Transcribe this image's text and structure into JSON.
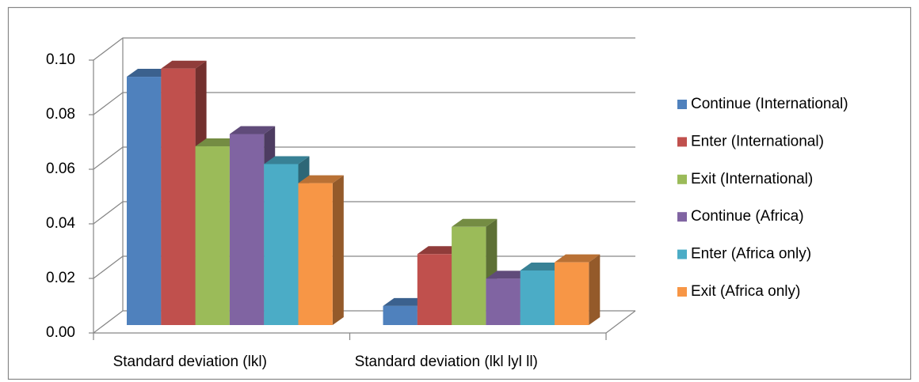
{
  "chart_data": {
    "type": "bar3d",
    "categories": [
      "Standard deviation (lkl)",
      "Standard deviation (lkl lyl ll)"
    ],
    "series": [
      {
        "name": "Continue (International)",
        "color": "#4f81bd",
        "values": [
          0.091,
          0.007
        ]
      },
      {
        "name": "Enter (International)",
        "color": "#c0504d",
        "values": [
          0.094,
          0.026
        ]
      },
      {
        "name": "Exit (International)",
        "color": "#9bbb59",
        "values": [
          0.0655,
          0.036
        ]
      },
      {
        "name": "Continue (Africa)",
        "color": "#8064a2",
        "values": [
          0.07,
          0.017
        ]
      },
      {
        "name": "Enter (Africa only)",
        "color": "#4bacc6",
        "values": [
          0.059,
          0.02
        ]
      },
      {
        "name": "Exit (Africa only)",
        "color": "#f79646",
        "values": [
          0.052,
          0.023
        ]
      }
    ],
    "ylim": [
      0,
      0.1
    ],
    "yticks": [
      {
        "value": 0,
        "label": "0.00"
      },
      {
        "value": 0.02,
        "label": "0.02"
      },
      {
        "value": 0.04,
        "label": "0.04"
      },
      {
        "value": 0.06,
        "label": "0.06"
      },
      {
        "value": 0.08,
        "label": "0.08"
      },
      {
        "value": 0.1,
        "label": "0.10"
      }
    ],
    "grid": true,
    "legend": "right"
  }
}
